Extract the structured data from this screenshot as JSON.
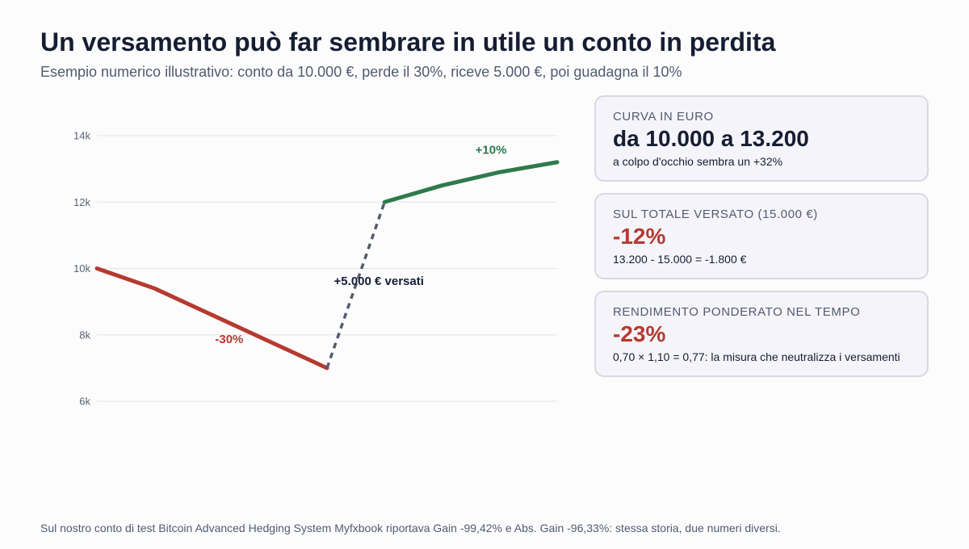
{
  "title": "Un versamento può far sembrare in utile un conto in perdita",
  "subtitle": "Esempio numerico illustrativo: conto da 10.000 €, perde il 30%, riceve 5.000 €, poi guadagna il 10%",
  "colors": {
    "loss": "#b53a30",
    "gain": "#2e7a4b",
    "deposit": "#555c70",
    "text": "#161d33",
    "muted": "#535a6f"
  },
  "chart_data": {
    "type": "line",
    "ylim": [
      6000,
      14000
    ],
    "yticks": [
      6000,
      8000,
      10000,
      12000,
      14000
    ],
    "ytick_labels": [
      "6k",
      "8k",
      "10k",
      "12k",
      "14k"
    ],
    "xlim": [
      0,
      8
    ],
    "grid": true,
    "series": [
      {
        "x": [
          0,
          1,
          2,
          3,
          4
        ],
        "values": [
          10000,
          9400,
          8600,
          7800,
          7000
        ],
        "style": "solid",
        "color": "#b53a30"
      },
      {
        "x": [
          4,
          5
        ],
        "values": [
          7000,
          12000
        ],
        "style": "dashed",
        "color": "#555c70"
      },
      {
        "x": [
          5,
          6,
          7,
          8
        ],
        "values": [
          12000,
          12500,
          12900,
          13200
        ],
        "style": "solid",
        "color": "#2e7a4b"
      }
    ],
    "annotations": [
      {
        "text": "-30%",
        "x": 2.3,
        "y": 7750,
        "color": "#b53a30",
        "anchor": "middle"
      },
      {
        "text": "+5.000 € versati",
        "x": 4.12,
        "y": 9500,
        "color": "#161d33",
        "anchor": "start"
      },
      {
        "text": "+10%",
        "x": 6.85,
        "y": 13450,
        "color": "#2e7a4b",
        "anchor": "middle"
      }
    ]
  },
  "cards": [
    {
      "kicker": "CURVA IN EURO",
      "big": "da 10.000 a 13.200",
      "note": "a colpo d'occhio sembra un +32%",
      "color": "#161d33"
    },
    {
      "kicker": "SUL TOTALE VERSATO (15.000 €)",
      "big": "-12%",
      "note": "13.200 - 15.000 = -1.800 €",
      "color": "#b53a30"
    },
    {
      "kicker": "RENDIMENTO PONDERATO NEL TEMPO",
      "big": "-23%",
      "note": "0,70 × 1,10 = 0,77: la misura che neutralizza i versamenti",
      "color": "#b53a30"
    }
  ],
  "footer": "Sul nostro conto di test Bitcoin Advanced Hedging System Myfxbook riportava Gain -99,42% e Abs. Gain -96,33%: stessa storia, due numeri diversi."
}
